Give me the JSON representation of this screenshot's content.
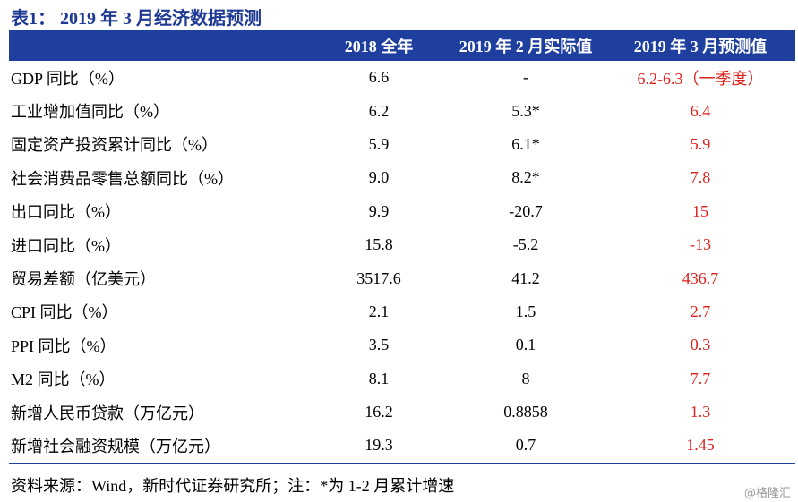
{
  "title": "表1：  2019 年 3 月经济数据预测",
  "table": {
    "header": [
      "2018 全年",
      "2019 年 2 月实际值",
      "2019 年 3 月预测值"
    ],
    "rows": [
      [
        "GDP 同比（%）",
        "6.6",
        "-",
        "6.2-6.3（一季度）"
      ],
      [
        "工业增加值同比（%）",
        "6.2",
        "5.3*",
        "6.4"
      ],
      [
        "固定资产投资累计同比（%）",
        "5.9",
        "6.1*",
        "5.9"
      ],
      [
        "社会消费品零售总额同比（%）",
        "9.0",
        "8.2*",
        "7.8"
      ],
      [
        "出口同比（%）",
        "9.9",
        "-20.7",
        "15"
      ],
      [
        "进口同比（%）",
        "15.8",
        "-5.2",
        "-13"
      ],
      [
        "贸易差额（亿美元）",
        "3517.6",
        "41.2",
        "436.7"
      ],
      [
        "CPI 同比（%）",
        "2.1",
        "1.5",
        "2.7"
      ],
      [
        "PPI 同比（%）",
        "3.5",
        "0.1",
        "0.3"
      ],
      [
        "M2 同比（%）",
        "8.1",
        "8",
        "7.7"
      ],
      [
        "新增人民币贷款（万亿元）",
        "16.2",
        "0.8858",
        "1.3"
      ],
      [
        "新增社会融资规模（万亿元）",
        "19.3",
        "0.7",
        "1.45"
      ]
    ]
  },
  "source": "资料来源：Wind，新时代证券研究所；注：*为 1-2 月累计增速",
  "watermark": "@格隆汇"
}
